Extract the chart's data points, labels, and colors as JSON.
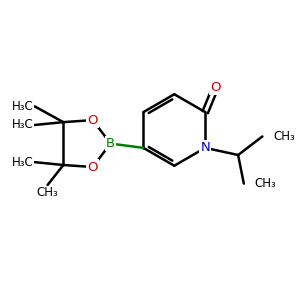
{
  "bg_color": "#ffffff",
  "bond_color": "#000000",
  "bond_width": 1.8,
  "atom_colors": {
    "O": "#cc0000",
    "N": "#0000cc",
    "B": "#008000",
    "C": "#000000"
  },
  "font_size": 8.5,
  "figsize": [
    3.0,
    3.0
  ],
  "dpi": 100,
  "xlim": [
    0,
    10
  ],
  "ylim": [
    0,
    10
  ]
}
